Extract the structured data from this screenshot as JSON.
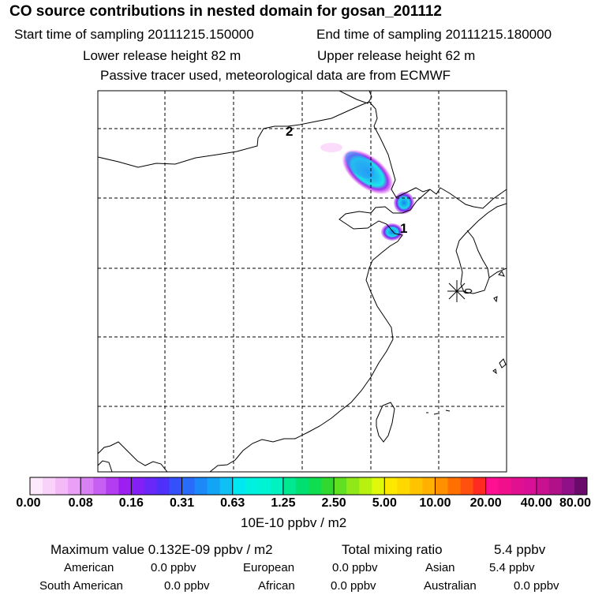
{
  "header": {
    "title": "CO  source contributions in nested domain for gosan_201112",
    "start_time": "Start time of sampling 20111215.150000",
    "end_time": "End time of sampling 20111215.180000",
    "lower_release": "Lower release height   82 m",
    "upper_release": "Upper release height   62 m",
    "note": "Passive tracer used, meteorological data are from ECMWF"
  },
  "map": {
    "labels": [
      {
        "text": "2",
        "name": "trajectory-marker-2"
      },
      {
        "text": "1",
        "name": "trajectory-marker-1"
      }
    ],
    "station_icon": "receptor-star-icon"
  },
  "colorbar": {
    "tick_labels": [
      "0.00",
      "0.08",
      "0.16",
      "0.31",
      "0.63",
      "1.25",
      "2.50",
      "5.00",
      "10.00",
      "20.00",
      "40.00",
      "80.00"
    ],
    "colors": [
      "#fde9fc",
      "#f9d2fa",
      "#f4b9f7",
      "#e9a0f6",
      "#d980f4",
      "#c760f2",
      "#b33ef0",
      "#9c1ef0",
      "#8420f5",
      "#6a28f8",
      "#4e30fa",
      "#3450fb",
      "#2a6cfa",
      "#1d88f8",
      "#12a4f5",
      "#0ec0f3",
      "#00e8f2",
      "#00f0e0",
      "#00f4d4",
      "#00f2c0",
      "#00e890",
      "#00e070",
      "#10dc50",
      "#30d830",
      "#60e020",
      "#90e818",
      "#b8f010",
      "#e0f80a",
      "#ffe800",
      "#ffd800",
      "#ffc400",
      "#ffb000",
      "#ff9000",
      "#ff7000",
      "#ff5010",
      "#ff2a20",
      "#ff1090",
      "#f0108c",
      "#e01090",
      "#d81098",
      "#c81090",
      "#b0108a",
      "#901088",
      "#6a0a6a"
    ],
    "unit": "10E-10 ppbv / m2"
  },
  "summary": {
    "max_value": "Maximum value  0.132E-09 ppbv / m2",
    "total_mixing": "Total mixing ratio",
    "total_mixing_value": "5.4 ppbv",
    "regions": [
      {
        "name": "American",
        "value": "0.0 ppbv"
      },
      {
        "name": "European",
        "value": "0.0 ppbv"
      },
      {
        "name": "Asian",
        "value": "5.4 ppbv"
      },
      {
        "name": "South American",
        "value": "0.0 ppbv"
      },
      {
        "name": "African",
        "value": "0.0 ppbv"
      },
      {
        "name": "Australian",
        "value": "0.0 ppbv"
      }
    ]
  }
}
